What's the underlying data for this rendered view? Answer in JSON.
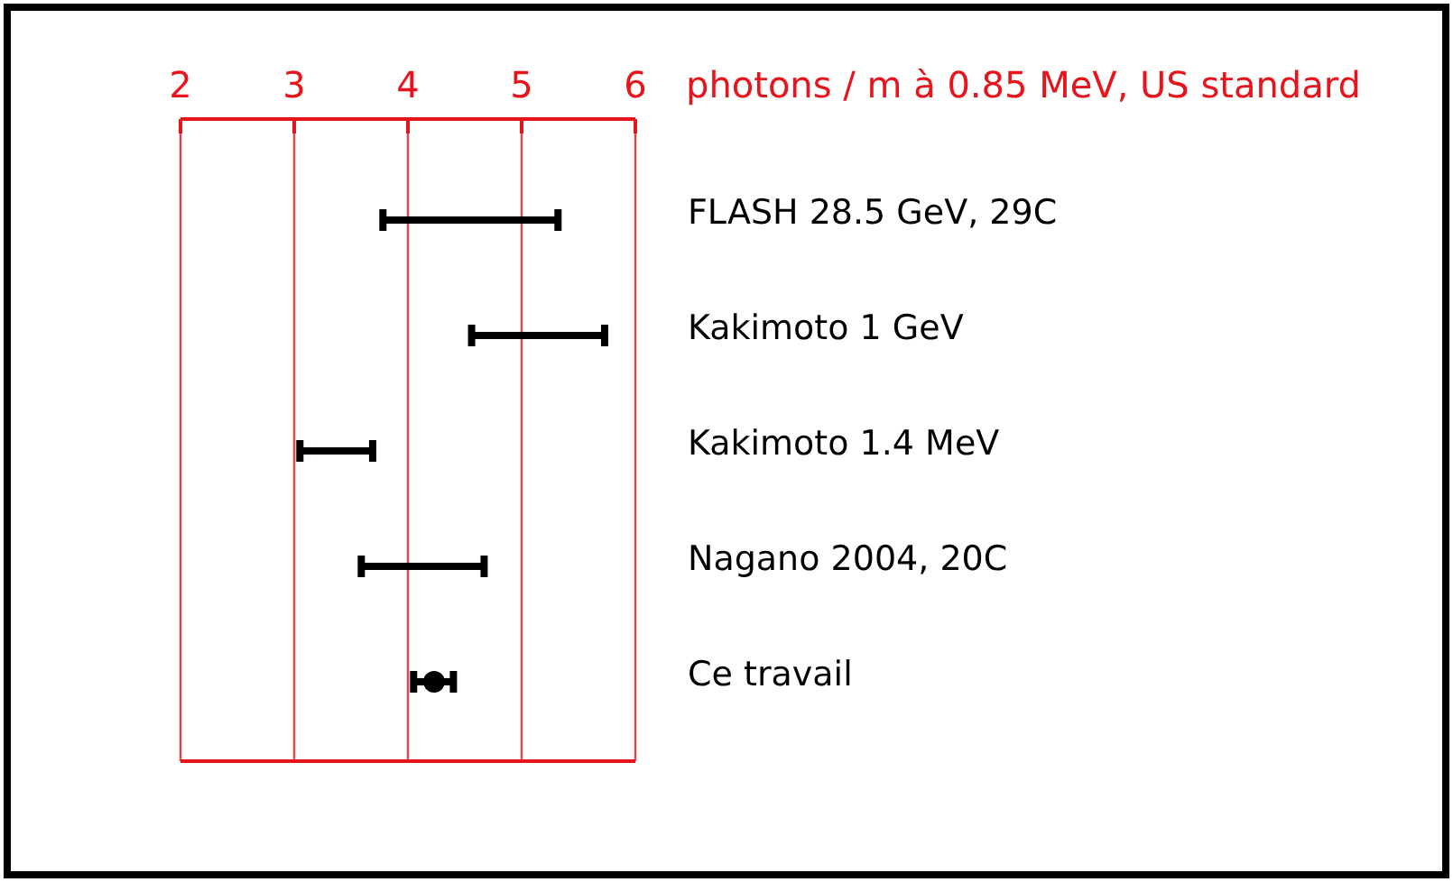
{
  "chart_data": {
    "type": "bar",
    "orientation": "horizontal",
    "xlabel": "photons / m à 0.85 MeV, US standard",
    "categories": [
      "FLASH 28.5 GeV, 29C",
      "Kakimoto 1 GeV",
      "Kakimoto 1.4 MeV",
      "Nagano 2004, 20C",
      "Ce travail"
    ],
    "series": [
      {
        "type": "bar",
        "color": "#000000",
        "base": [
          3.78,
          4.56,
          3.05,
          3.59,
          null
        ],
        "values": [
          1.54,
          1.17,
          0.64,
          1.08,
          null
        ]
      },
      {
        "type": "scatter",
        "color": "#000000",
        "marker": "circle",
        "values": [
          null,
          null,
          null,
          null,
          4.23
        ],
        "errors": [
          null,
          null,
          null,
          null,
          [
            4.05,
            4.4
          ]
        ]
      }
    ],
    "xlim": [
      2,
      6
    ],
    "xticks": [
      2,
      3,
      4,
      5,
      6
    ],
    "grid": "x"
  }
}
